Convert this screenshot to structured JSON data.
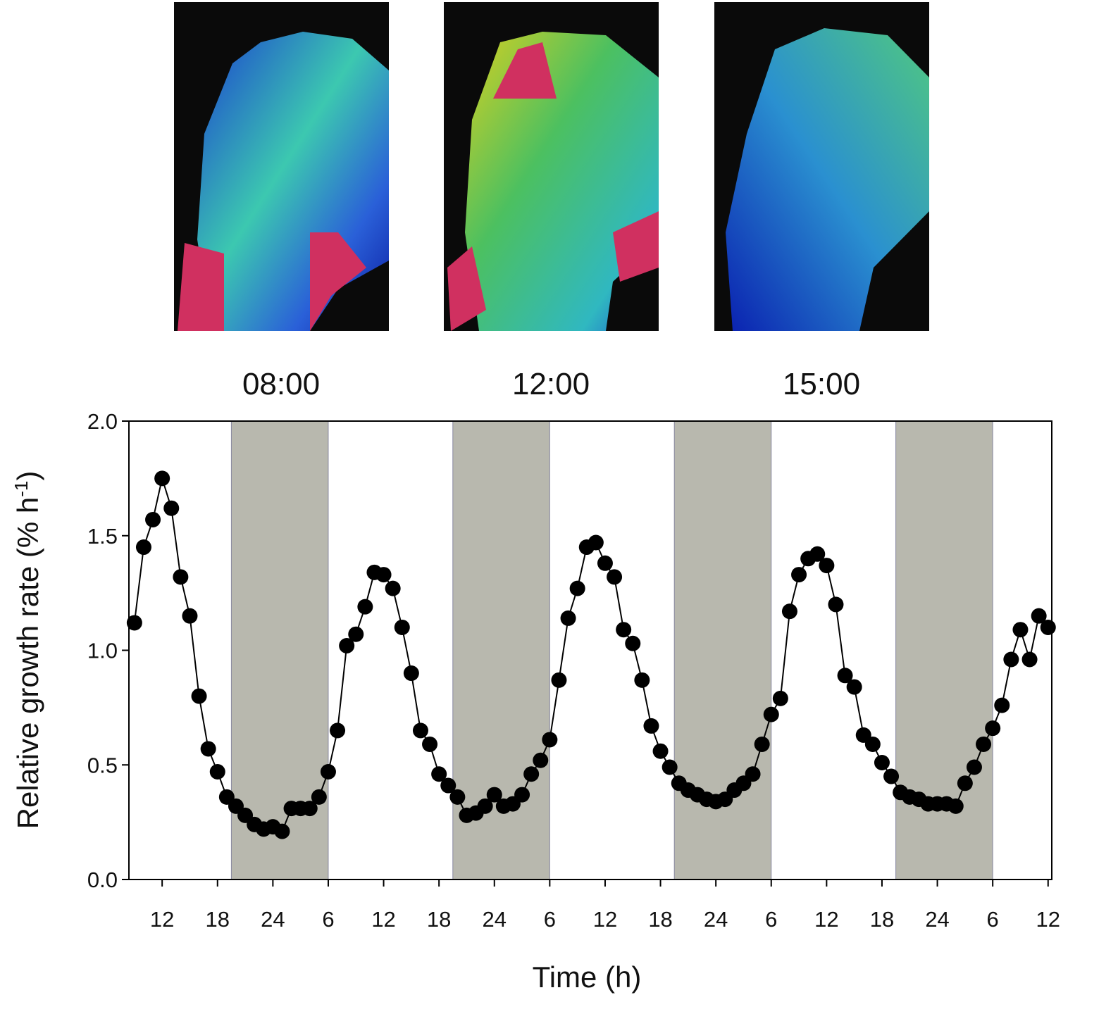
{
  "panels": [
    "08:00",
    "12:00",
    "15:00"
  ],
  "chart_data": {
    "type": "line",
    "x_label": "Time (h)",
    "y_label": [
      "Relative growth rate (% h",
      "-1",
      ")"
    ],
    "color": "#000000",
    "shade_color": "#b8b8ae",
    "shaded_x": [
      [
        19.5,
        30
      ],
      [
        43.5,
        54
      ],
      [
        67.5,
        78
      ],
      [
        91.5,
        102
      ]
    ],
    "xlim": [
      8.4,
      108.4
    ],
    "ylim": [
      0,
      2
    ],
    "xticks": [
      12,
      18,
      24,
      {
        "value": 30,
        "label": "6"
      },
      {
        "value": 36,
        "label": "12"
      },
      {
        "value": 42,
        "label": "18"
      },
      {
        "value": 48,
        "label": "24"
      },
      {
        "value": 54,
        "label": "6"
      },
      {
        "value": 60,
        "label": "12"
      },
      {
        "value": 66,
        "label": "18"
      },
      {
        "value": 72,
        "label": "24"
      },
      {
        "value": 78,
        "label": "6"
      },
      {
        "value": 84,
        "label": "12"
      },
      {
        "value": 90,
        "label": "18"
      },
      {
        "value": 96,
        "label": "24"
      },
      {
        "value": 102,
        "label": "6"
      },
      {
        "value": 108,
        "label": "12"
      }
    ],
    "yticks": [
      {
        "value": 0,
        "label": "0.0"
      },
      0.5,
      {
        "value": 1,
        "label": "1.0"
      },
      1.5,
      {
        "value": 2,
        "label": "2.0"
      }
    ],
    "x": [
      9,
      10,
      11,
      12,
      13,
      14,
      15,
      16,
      17,
      18,
      19,
      20,
      21,
      22,
      23,
      24,
      25,
      26,
      27,
      28,
      29,
      30,
      31,
      32,
      33,
      34,
      35,
      36,
      37,
      38,
      39,
      40,
      41,
      42,
      43,
      44,
      45,
      46,
      47,
      48,
      49,
      50,
      51,
      52,
      53,
      54,
      55,
      56,
      57,
      58,
      59,
      60,
      61,
      62,
      63,
      64,
      65,
      66,
      67,
      68,
      69,
      70,
      71,
      72,
      73,
      74,
      75,
      76,
      77,
      78,
      79,
      80,
      81,
      82,
      83,
      84,
      85,
      86,
      87,
      88,
      89,
      90,
      91,
      92,
      93,
      94,
      95,
      96,
      97,
      98,
      99,
      100,
      101,
      102,
      103,
      104,
      105,
      106,
      107,
      108
    ],
    "values": [
      1.12,
      1.45,
      1.57,
      1.75,
      1.62,
      1.32,
      1.15,
      0.8,
      0.57,
      0.47,
      0.36,
      0.32,
      0.28,
      0.24,
      0.22,
      0.23,
      0.21,
      0.31,
      0.31,
      0.31,
      0.36,
      0.47,
      0.65,
      1.02,
      1.07,
      1.19,
      1.34,
      1.33,
      1.27,
      1.1,
      0.9,
      0.65,
      0.59,
      0.46,
      0.41,
      0.36,
      0.28,
      0.29,
      0.32,
      0.37,
      0.32,
      0.33,
      0.37,
      0.46,
      0.52,
      0.61,
      0.87,
      1.14,
      1.27,
      1.45,
      1.47,
      1.38,
      1.32,
      1.09,
      1.03,
      0.87,
      0.67,
      0.56,
      0.49,
      0.42,
      0.39,
      0.37,
      0.35,
      0.34,
      0.35,
      0.39,
      0.42,
      0.46,
      0.59,
      0.72,
      0.79,
      1.17,
      1.33,
      1.4,
      1.42,
      1.37,
      1.2,
      0.89,
      0.84,
      0.63,
      0.59,
      0.51,
      0.45,
      0.38,
      0.36,
      0.35,
      0.33,
      0.33,
      0.33,
      0.32,
      0.42,
      0.49,
      0.59,
      0.66,
      0.76,
      0.96,
      1.09,
      0.96,
      1.15,
      1.1
    ]
  }
}
